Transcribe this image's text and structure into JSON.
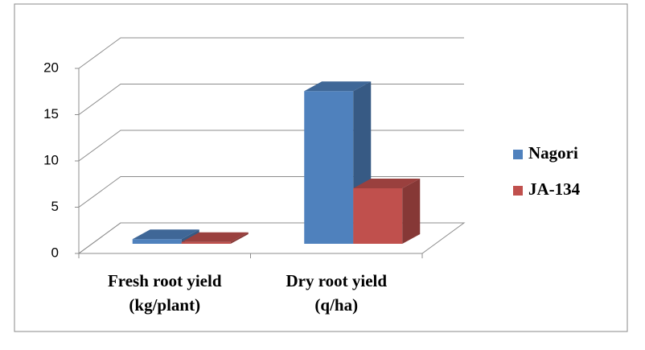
{
  "chart_data": {
    "type": "bar3d",
    "categories": [
      [
        "Fresh root yield",
        "(kg/plant)"
      ],
      [
        "Dry root yield",
        "(q/ha)"
      ]
    ],
    "series": [
      {
        "name": "Nagori",
        "color": "#4f81bd",
        "values": [
          0.5,
          16.5
        ]
      },
      {
        "name": "JA-134",
        "color": "#c0504d",
        "values": [
          0.2,
          6
        ]
      }
    ],
    "ylim": [
      0,
      20
    ],
    "yticks": [
      0,
      5,
      10,
      15,
      20
    ],
    "grid": true,
    "legend": "right"
  }
}
